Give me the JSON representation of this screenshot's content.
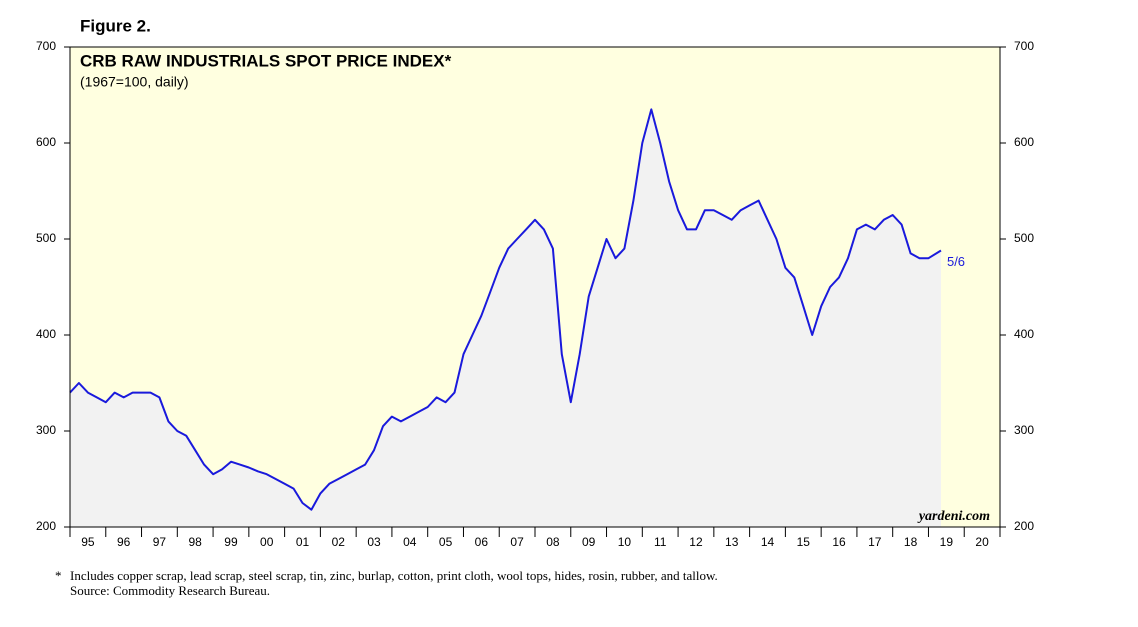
{
  "figure_label": "Figure 2.",
  "chart_data": {
    "type": "line",
    "title": "CRB RAW INDUSTRIALS SPOT PRICE INDEX*",
    "subtitle": "(1967=100, daily)",
    "annotation": "5/6",
    "watermark": "yardeni.com",
    "footnote_marker": "*",
    "footnote": "Includes copper scrap, lead scrap, steel scrap, tin, zinc, burlap, cotton, print cloth, wool tops, hides, rosin, rubber, and tallow.",
    "source": "Source: Commodity Research Bureau.",
    "x": [
      1995.0,
      1995.25,
      1995.5,
      1995.75,
      1996.0,
      1996.25,
      1996.5,
      1996.75,
      1997.0,
      1997.25,
      1997.5,
      1997.75,
      1998.0,
      1998.25,
      1998.5,
      1998.75,
      1999.0,
      1999.25,
      1999.5,
      1999.75,
      2000.0,
      2000.25,
      2000.5,
      2000.75,
      2001.0,
      2001.25,
      2001.5,
      2001.75,
      2002.0,
      2002.25,
      2002.5,
      2002.75,
      2003.0,
      2003.25,
      2003.5,
      2003.75,
      2004.0,
      2004.25,
      2004.5,
      2004.75,
      2005.0,
      2005.25,
      2005.5,
      2005.75,
      2006.0,
      2006.25,
      2006.5,
      2006.75,
      2007.0,
      2007.25,
      2007.5,
      2007.75,
      2008.0,
      2008.25,
      2008.5,
      2008.75,
      2009.0,
      2009.25,
      2009.5,
      2009.75,
      2010.0,
      2010.25,
      2010.5,
      2010.75,
      2011.0,
      2011.25,
      2011.5,
      2011.75,
      2012.0,
      2012.25,
      2012.5,
      2012.75,
      2013.0,
      2013.25,
      2013.5,
      2013.75,
      2014.0,
      2014.25,
      2014.5,
      2014.75,
      2015.0,
      2015.25,
      2015.5,
      2015.75,
      2016.0,
      2016.25,
      2016.5,
      2016.75,
      2017.0,
      2017.25,
      2017.5,
      2017.75,
      2018.0,
      2018.25,
      2018.5,
      2018.75,
      2019.0,
      2019.35
    ],
    "series": [
      {
        "name": "CRB Raw Industrials",
        "color": "#1a1adc",
        "values": [
          340,
          350,
          340,
          335,
          330,
          340,
          335,
          340,
          340,
          340,
          335,
          310,
          300,
          295,
          280,
          265,
          255,
          260,
          268,
          265,
          262,
          258,
          255,
          250,
          245,
          240,
          225,
          218,
          235,
          245,
          250,
          255,
          260,
          265,
          280,
          305,
          315,
          310,
          315,
          320,
          325,
          335,
          330,
          340,
          380,
          400,
          420,
          445,
          470,
          490,
          500,
          510,
          520,
          510,
          490,
          380,
          330,
          380,
          440,
          470,
          500,
          480,
          490,
          540,
          600,
          635,
          600,
          560,
          530,
          510,
          510,
          530,
          530,
          525,
          520,
          530,
          535,
          540,
          520,
          500,
          470,
          460,
          430,
          400,
          430,
          450,
          460,
          480,
          510,
          515,
          510,
          520,
          525,
          515,
          485,
          480,
          480,
          488
        ]
      }
    ],
    "xlim": [
      1995,
      2021
    ],
    "xticks": [
      {
        "value": 1995,
        "label": "95"
      },
      {
        "value": 1996,
        "label": "96"
      },
      {
        "value": 1997,
        "label": "97"
      },
      {
        "value": 1998,
        "label": "98"
      },
      {
        "value": 1999,
        "label": "99"
      },
      {
        "value": 2000,
        "label": "00"
      },
      {
        "value": 2001,
        "label": "01"
      },
      {
        "value": 2002,
        "label": "02"
      },
      {
        "value": 2003,
        "label": "03"
      },
      {
        "value": 2004,
        "label": "04"
      },
      {
        "value": 2005,
        "label": "05"
      },
      {
        "value": 2006,
        "label": "06"
      },
      {
        "value": 2007,
        "label": "07"
      },
      {
        "value": 2008,
        "label": "08"
      },
      {
        "value": 2009,
        "label": "09"
      },
      {
        "value": 2010,
        "label": "10"
      },
      {
        "value": 2011,
        "label": "11"
      },
      {
        "value": 2012,
        "label": "12"
      },
      {
        "value": 2013,
        "label": "13"
      },
      {
        "value": 2014,
        "label": "14"
      },
      {
        "value": 2015,
        "label": "15"
      },
      {
        "value": 2016,
        "label": "16"
      },
      {
        "value": 2017,
        "label": "17"
      },
      {
        "value": 2018,
        "label": "18"
      },
      {
        "value": 2019,
        "label": "19"
      },
      {
        "value": 2020,
        "label": "20"
      }
    ],
    "ylim": [
      200,
      700
    ],
    "yticks": [
      200,
      300,
      400,
      500,
      600,
      700
    ],
    "background": "#ffffe0",
    "area_fill": "#f2f2f2"
  }
}
